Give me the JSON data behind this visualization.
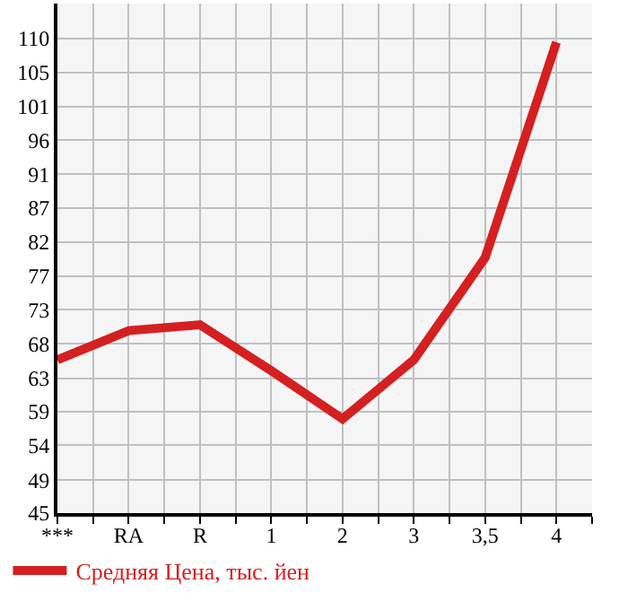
{
  "chart_data": {
    "type": "line",
    "categories": [
      "***",
      "RA",
      "R",
      "1",
      "2",
      "3",
      "3,5",
      "4"
    ],
    "series": [
      {
        "name": "Средняя Цена, тыс. йен",
        "color": "#d42020",
        "values": [
          66,
          70,
          70.8,
          64.5,
          57.9,
          66,
          80,
          109.5
        ]
      }
    ],
    "ylim": [
      45,
      114.8
    ],
    "yticks": [
      45,
      {
        "value": 49.49,
        "label": "49"
      },
      {
        "value": 54.29,
        "label": "54"
      },
      {
        "value": 58.93,
        "label": "59"
      },
      {
        "value": 63.49,
        "label": "63"
      },
      {
        "value": 68.21,
        "label": "68"
      },
      {
        "value": 72.86,
        "label": "73"
      },
      {
        "value": 77.5,
        "label": "77"
      },
      {
        "value": 82.14,
        "label": "82"
      },
      {
        "value": 86.79,
        "label": "87"
      },
      {
        "value": 91.43,
        "label": "91"
      },
      {
        "value": 96.07,
        "label": "96"
      },
      {
        "value": 100.71,
        "label": "101"
      },
      {
        "value": 105.36,
        "label": "105"
      },
      110
    ],
    "grid": true,
    "legend": "bottom",
    "marker": "none",
    "line_style": "solid"
  }
}
